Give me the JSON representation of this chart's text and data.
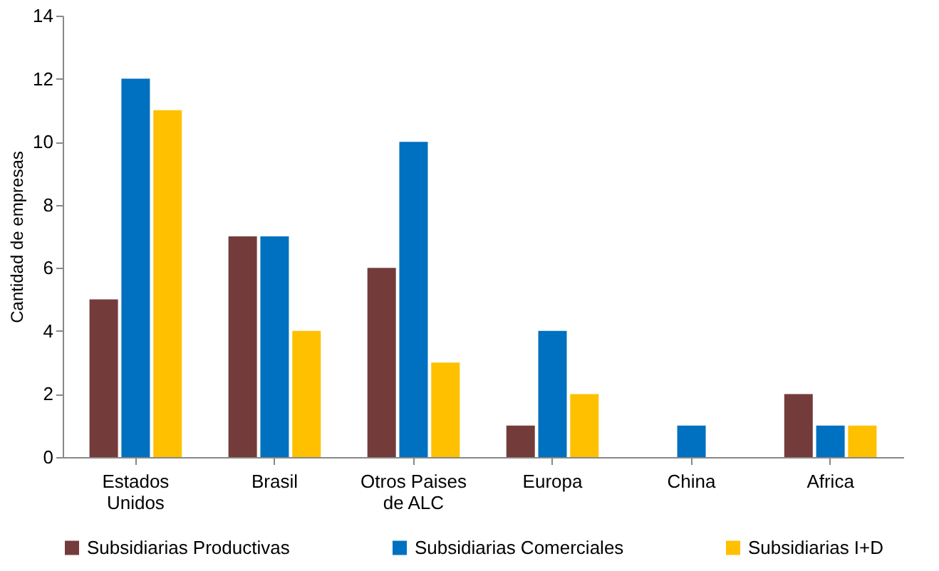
{
  "chart_data": {
    "type": "bar",
    "ylabel": "Cantidad de empresas",
    "categories": [
      "Estados\nUnidos",
      "Brasil",
      "Otros Paises\nde ALC",
      "Europa",
      "China",
      "Africa"
    ],
    "series": [
      {
        "name": "Subsidiarias Productivas",
        "color": "#743b3b",
        "values": [
          5,
          7,
          6,
          1,
          0,
          2
        ]
      },
      {
        "name": "Subsidiarias Comerciales",
        "color": "#0070c0",
        "values": [
          12,
          7,
          10,
          4,
          1,
          1
        ]
      },
      {
        "name": "Subsidiarias I+D",
        "color": "#ffc000",
        "values": [
          11,
          4,
          3,
          2,
          0,
          1
        ]
      }
    ],
    "ylim": [
      0,
      14
    ],
    "yticks": [
      0,
      2,
      4,
      6,
      8,
      10,
      12,
      14
    ],
    "grid": false,
    "legend": "bottom"
  }
}
